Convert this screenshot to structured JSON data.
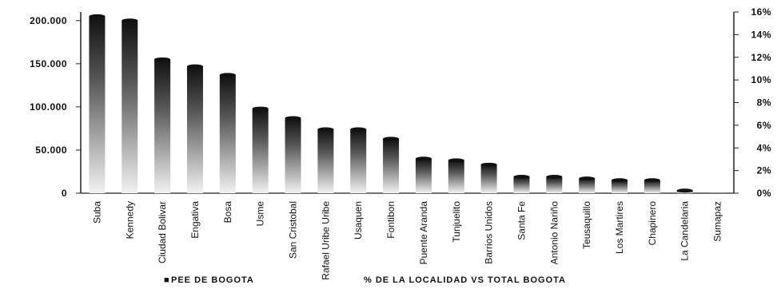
{
  "chart_data": {
    "type": "bar",
    "categories": [
      "Suba",
      "Kennedy",
      "Ciudad Bolivar",
      "Engativa",
      "Bosa",
      "Usme",
      "San Cristobal",
      "Rafael Uribe Uribe",
      "Usaquen",
      "Fontibon",
      "Puente Aranda",
      "Tunjuelito",
      "Barrios Unidos",
      "Santa Fe",
      "Antonio Nariño",
      "Teusaquillo",
      "Los Martires",
      "Chapinero",
      "La Candelaria",
      "Sumapaz"
    ],
    "series": [
      {
        "name": "PEE DE BOGOTA",
        "axis": "left",
        "values": [
          205000,
          200000,
          155000,
          147000,
          137000,
          98000,
          87000,
          74000,
          74000,
          63000,
          40000,
          38000,
          33000,
          19000,
          19000,
          17000,
          15000,
          15000,
          3000,
          500
        ]
      }
    ],
    "yleft": {
      "ticks": [
        "0",
        "50.000",
        "100.000",
        "150.000",
        "200.000"
      ],
      "ylim": [
        0,
        210000
      ]
    },
    "yright": {
      "ticks": [
        "0%",
        "2%",
        "4%",
        "6%",
        "8%",
        "10%",
        "12%",
        "14%",
        "16%"
      ],
      "ylim": [
        0,
        16
      ]
    },
    "legend": [
      {
        "label": "PEE DE BOGOTA",
        "marker": "■"
      },
      {
        "label": "% DE LA LOCALIDAD VS TOTAL BOGOTA",
        "marker": ""
      }
    ],
    "legend_position": "bottom",
    "grid": false,
    "colors": {
      "bar_top": "#111111",
      "bar_bottom": "#f2f2f2",
      "axis": "#222222"
    }
  }
}
